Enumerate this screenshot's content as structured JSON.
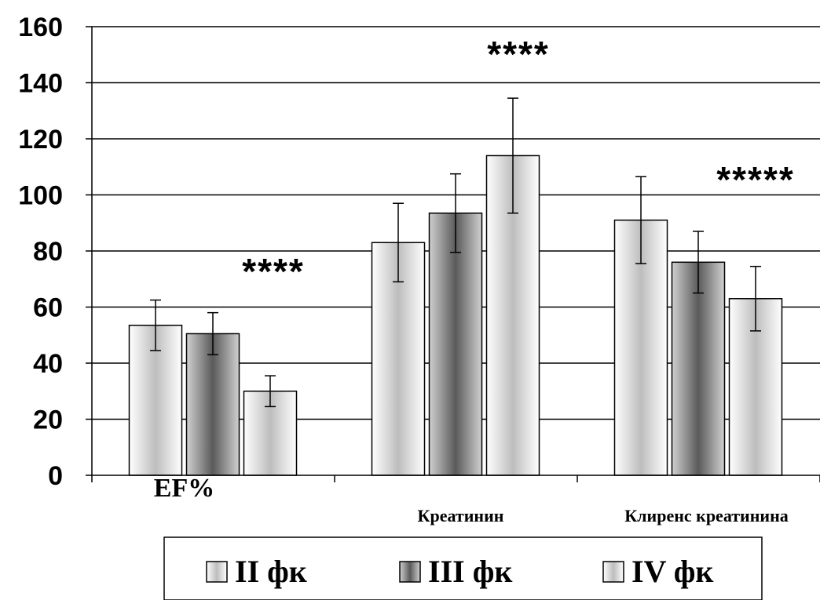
{
  "chart_data": {
    "type": "bar",
    "categories": [
      "EF%",
      "Креатинин",
      "Клиренс креатинина"
    ],
    "series": [
      {
        "name": "II фк",
        "values": [
          53.5,
          83,
          91
        ],
        "errors": [
          9,
          14,
          15.5
        ],
        "color": "#d9d9d9"
      },
      {
        "name": "III фк",
        "values": [
          50.5,
          93.5,
          76
        ],
        "errors": [
          7.5,
          14,
          11
        ],
        "color": "#808080"
      },
      {
        "name": "IV фк",
        "values": [
          30,
          114,
          63
        ],
        "errors": [
          5.5,
          20.5,
          11.5
        ],
        "color": "#d9d9d9"
      }
    ],
    "significance": [
      "****",
      "****",
      "*****"
    ],
    "ylim": [
      0,
      160
    ],
    "yticks": [
      0,
      20,
      40,
      60,
      80,
      100,
      120,
      140,
      160
    ],
    "grid": true,
    "legend_position": "bottom",
    "title": "",
    "xlabel": "",
    "ylabel": ""
  }
}
